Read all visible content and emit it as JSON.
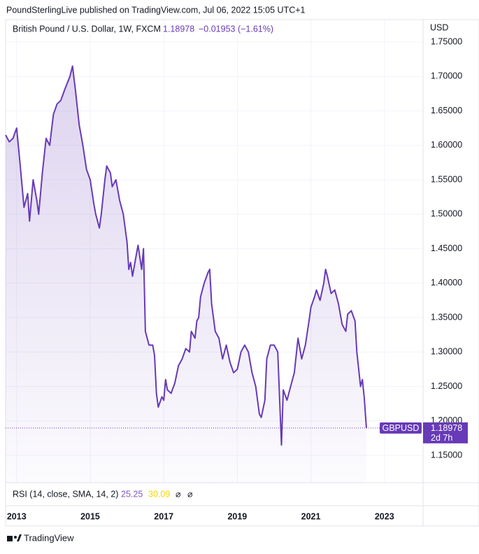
{
  "header": "PoundSterlingLive published on TradingView.com, Jul 06, 2022 15:05 UTC+1",
  "footer": "TradingView",
  "chart_data": {
    "type": "line",
    "legend": {
      "symbol": "British Pound / U.S. Dollar, 1W, FXCM",
      "price": "1.18978",
      "change": "−0.01953 (−1.61%)"
    },
    "currency": "USD",
    "price_tag": {
      "symbol": "GBPUSD",
      "price": "1.18978",
      "countdown": "2d 7h"
    },
    "rsi": {
      "label": "RSI (14, close, SMA, 14, 2)",
      "value": "25.25",
      "sma": "30.09",
      "na1": "⌀",
      "na2": "⌀"
    },
    "x": [
      2012.7,
      2012.8,
      2012.9,
      2013.0,
      2013.1,
      2013.2,
      2013.3,
      2013.35,
      2013.45,
      2013.55,
      2013.6,
      2013.7,
      2013.8,
      2013.9,
      2014.0,
      2014.1,
      2014.2,
      2014.3,
      2014.45,
      2014.52,
      2014.6,
      2014.7,
      2014.8,
      2014.9,
      2015.0,
      2015.1,
      2015.15,
      2015.25,
      2015.3,
      2015.4,
      2015.45,
      2015.55,
      2015.6,
      2015.7,
      2015.8,
      2015.9,
      2016.0,
      2016.05,
      2016.1,
      2016.15,
      2016.25,
      2016.3,
      2016.4,
      2016.45,
      2016.5,
      2016.6,
      2016.7,
      2016.75,
      2016.8,
      2016.85,
      2016.95,
      2017.0,
      2017.05,
      2017.1,
      2017.2,
      2017.3,
      2017.4,
      2017.5,
      2017.6,
      2017.7,
      2017.75,
      2017.85,
      2017.9,
      2017.95,
      2018.0,
      2018.1,
      2018.2,
      2018.25,
      2018.3,
      2018.4,
      2018.5,
      2018.6,
      2018.7,
      2018.8,
      2018.9,
      2019.0,
      2019.1,
      2019.2,
      2019.3,
      2019.4,
      2019.5,
      2019.6,
      2019.65,
      2019.75,
      2019.8,
      2019.9,
      2020.0,
      2020.1,
      2020.2,
      2020.25,
      2020.35,
      2020.45,
      2020.55,
      2020.65,
      2020.75,
      2020.85,
      2020.95,
      2021.0,
      2021.1,
      2021.15,
      2021.25,
      2021.35,
      2021.4,
      2021.45,
      2021.55,
      2021.65,
      2021.75,
      2021.85,
      2021.95,
      2022.0,
      2022.1,
      2022.2,
      2022.25,
      2022.35,
      2022.4,
      2022.45,
      2022.51
    ],
    "series": [
      {
        "name": "GBPUSD",
        "color": "#673ab7",
        "values": [
          1.615,
          1.605,
          1.61,
          1.625,
          1.57,
          1.51,
          1.53,
          1.49,
          1.55,
          1.52,
          1.5,
          1.56,
          1.61,
          1.6,
          1.645,
          1.66,
          1.665,
          1.68,
          1.7,
          1.715,
          1.68,
          1.63,
          1.6,
          1.565,
          1.55,
          1.515,
          1.5,
          1.48,
          1.5,
          1.55,
          1.57,
          1.56,
          1.54,
          1.55,
          1.52,
          1.5,
          1.46,
          1.42,
          1.43,
          1.41,
          1.44,
          1.455,
          1.42,
          1.45,
          1.33,
          1.31,
          1.31,
          1.295,
          1.24,
          1.22,
          1.235,
          1.23,
          1.26,
          1.245,
          1.24,
          1.255,
          1.28,
          1.29,
          1.305,
          1.3,
          1.33,
          1.32,
          1.345,
          1.35,
          1.38,
          1.4,
          1.415,
          1.42,
          1.37,
          1.33,
          1.32,
          1.29,
          1.31,
          1.285,
          1.27,
          1.275,
          1.3,
          1.31,
          1.3,
          1.27,
          1.25,
          1.21,
          1.205,
          1.23,
          1.29,
          1.31,
          1.31,
          1.3,
          1.165,
          1.245,
          1.23,
          1.25,
          1.27,
          1.32,
          1.29,
          1.31,
          1.345,
          1.365,
          1.38,
          1.39,
          1.375,
          1.4,
          1.42,
          1.41,
          1.385,
          1.39,
          1.37,
          1.34,
          1.33,
          1.355,
          1.36,
          1.345,
          1.3,
          1.25,
          1.26,
          1.235,
          1.18978
        ]
      }
    ],
    "xlim": [
      2012.7,
      2024.05
    ],
    "xticks": [
      2013,
      2015,
      2017,
      2019,
      2021,
      2023
    ],
    "ylim": [
      1.1104,
      1.7825
    ],
    "yticks": [
      {
        "value": 1.15,
        "label": "1.15000"
      },
      {
        "value": 1.2,
        "label": "1.20000"
      },
      {
        "value": 1.25,
        "label": "1.25000"
      },
      {
        "value": 1.3,
        "label": "1.30000"
      },
      {
        "value": 1.35,
        "label": "1.35000"
      },
      {
        "value": 1.4,
        "label": "1.40000"
      },
      {
        "value": 1.45,
        "label": "1.45000"
      },
      {
        "value": 1.5,
        "label": "1.50000"
      },
      {
        "value": 1.55,
        "label": "1.55000"
      },
      {
        "value": 1.6,
        "label": "1.60000"
      },
      {
        "value": 1.65,
        "label": "1.65000"
      },
      {
        "value": 1.7,
        "label": "1.70000"
      },
      {
        "value": 1.75,
        "label": "1.75000"
      }
    ],
    "grid": true
  }
}
